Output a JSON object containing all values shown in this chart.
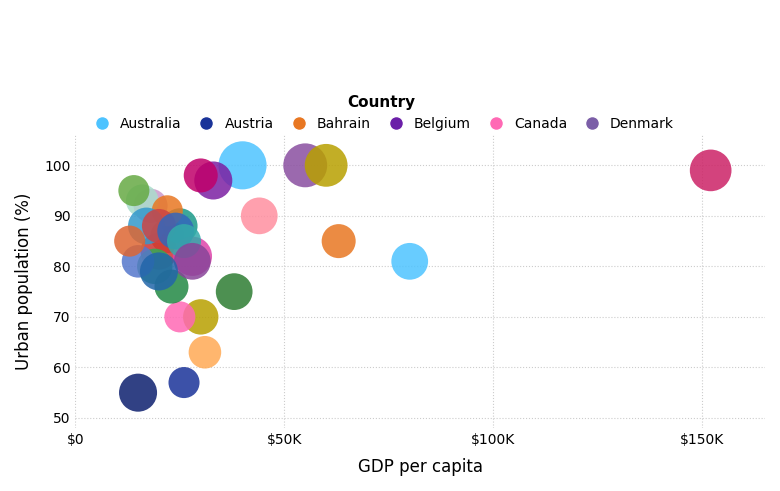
{
  "title": "",
  "xlabel": "GDP per capita",
  "ylabel": "Urban population (%)",
  "legend_title": "Country",
  "legend_entries": [
    "Australia",
    "Austria",
    "Bahrain",
    "Belgium",
    "Canada",
    "Denmark"
  ],
  "legend_colors": [
    "#4dc3ff",
    "#1a3399",
    "#e87722",
    "#6b1fa8",
    "#ff69b4",
    "#7b5ea7"
  ],
  "background_color": "#ffffff",
  "plot_bg": "#ffffff",
  "grid_color": "#cccccc",
  "xlim": [
    0,
    165000
  ],
  "ylim": [
    48,
    106
  ],
  "xticks": [
    0,
    50000,
    100000,
    150000
  ],
  "xtick_labels": [
    "$0",
    "$50K",
    "$100K",
    "$150K"
  ],
  "yticks": [
    50,
    60,
    70,
    80,
    90,
    100
  ],
  "bubbles": [
    {
      "gdp": 152000,
      "urban": 99,
      "color": "#cc2266",
      "size": 900
    },
    {
      "gdp": 80000,
      "urban": 81,
      "color": "#4dc3ff",
      "size": 700
    },
    {
      "gdp": 63000,
      "urban": 85,
      "color": "#e87722",
      "size": 600
    },
    {
      "gdp": 55000,
      "urban": 100,
      "color": "#8a4fa0",
      "size": 1000
    },
    {
      "gdp": 60000,
      "urban": 100,
      "color": "#b8a000",
      "size": 950
    },
    {
      "gdp": 44000,
      "urban": 90,
      "color": "#ff8fa0",
      "size": 700
    },
    {
      "gdp": 40000,
      "urban": 100,
      "color": "#4dc3ff",
      "size": 1200
    },
    {
      "gdp": 33000,
      "urban": 97,
      "color": "#7b1fa2",
      "size": 750
    },
    {
      "gdp": 30000,
      "urban": 98,
      "color": "#c0006a",
      "size": 600
    },
    {
      "gdp": 38000,
      "urban": 75,
      "color": "#2e7d32",
      "size": 700
    },
    {
      "gdp": 30000,
      "urban": 70,
      "color": "#b8a000",
      "size": 650
    },
    {
      "gdp": 25000,
      "urban": 70,
      "color": "#ff69b4",
      "size": 500
    },
    {
      "gdp": 31000,
      "urban": 63,
      "color": "#ffaa55",
      "size": 550
    },
    {
      "gdp": 26000,
      "urban": 57,
      "color": "#1a3399",
      "size": 500
    },
    {
      "gdp": 15000,
      "urban": 55,
      "color": "#0d1f6e",
      "size": 750
    },
    {
      "gdp": 22000,
      "urban": 86,
      "color": "#e87722",
      "size": 600
    },
    {
      "gdp": 20000,
      "urban": 83,
      "color": "#cc3333",
      "size": 700
    },
    {
      "gdp": 25000,
      "urban": 88,
      "color": "#1a9988",
      "size": 650
    },
    {
      "gdp": 28000,
      "urban": 82,
      "color": "#dd44aa",
      "size": 800
    },
    {
      "gdp": 18000,
      "urban": 92,
      "color": "#cc99cc",
      "size": 600
    },
    {
      "gdp": 16000,
      "urban": 93,
      "color": "#aaddcc",
      "size": 550
    },
    {
      "gdp": 22000,
      "urban": 91,
      "color": "#e87722",
      "size": 500
    },
    {
      "gdp": 17000,
      "urban": 88,
      "color": "#3399cc",
      "size": 700
    },
    {
      "gdp": 14000,
      "urban": 95,
      "color": "#66aa44",
      "size": 500
    },
    {
      "gdp": 20000,
      "urban": 88,
      "color": "#cc4444",
      "size": 600
    },
    {
      "gdp": 24000,
      "urban": 87,
      "color": "#3366bb",
      "size": 700
    },
    {
      "gdp": 26000,
      "urban": 85,
      "color": "#33aaaa",
      "size": 600
    },
    {
      "gdp": 19000,
      "urban": 80,
      "color": "#33aa55",
      "size": 650
    },
    {
      "gdp": 23000,
      "urban": 76,
      "color": "#228844",
      "size": 600
    },
    {
      "gdp": 15000,
      "urban": 81,
      "color": "#5577cc",
      "size": 550
    },
    {
      "gdp": 13000,
      "urban": 85,
      "color": "#dd6633",
      "size": 500
    },
    {
      "gdp": 28000,
      "urban": 81,
      "color": "#884499",
      "size": 700
    },
    {
      "gdp": 20000,
      "urban": 79,
      "color": "#2266aa",
      "size": 750
    }
  ]
}
